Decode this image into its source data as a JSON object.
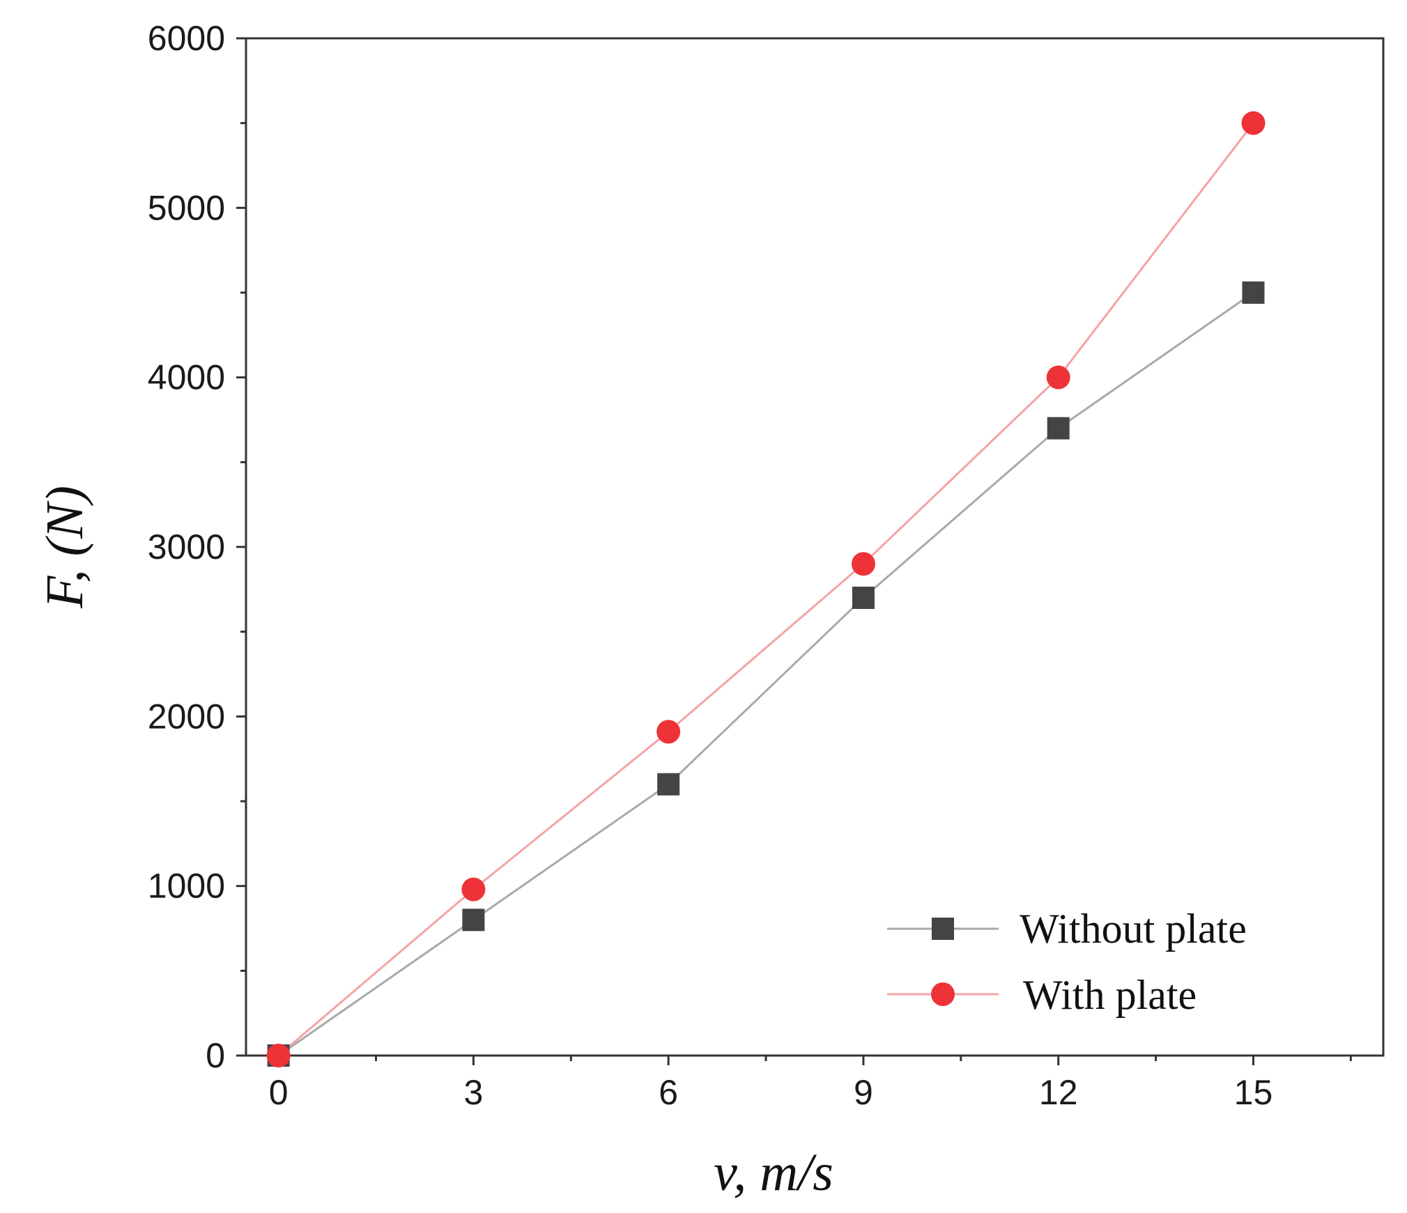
{
  "chart_data": {
    "type": "line",
    "xlabel": "v, m/s",
    "ylabel": "F, (N)",
    "x": [
      0,
      3,
      6,
      9,
      12,
      15
    ],
    "xlim": [
      -0.5,
      17
    ],
    "ylim": [
      0,
      6000
    ],
    "x_ticks": [
      "0",
      "3",
      "6",
      "9",
      "12",
      "15"
    ],
    "y_ticks": [
      "0",
      "1000",
      "2000",
      "3000",
      "4000",
      "5000",
      "6000"
    ],
    "x_tick_values": [
      0,
      3,
      6,
      9,
      12,
      15
    ],
    "y_tick_values": [
      0,
      1000,
      2000,
      3000,
      4000,
      5000,
      6000
    ],
    "grid": false,
    "legend_position": "bottom-right",
    "series": [
      {
        "name": "Without plate",
        "marker": "square",
        "line_color": "#a9a9a9",
        "marker_color": "#444444",
        "values": [
          0,
          800,
          1600,
          2700,
          3700,
          4500
        ]
      },
      {
        "name": "With plate",
        "marker": "circle",
        "line_color": "#f5a3a6",
        "marker_color": "#ee3338",
        "values": [
          0,
          980,
          1910,
          2900,
          4000,
          5500
        ]
      }
    ]
  }
}
